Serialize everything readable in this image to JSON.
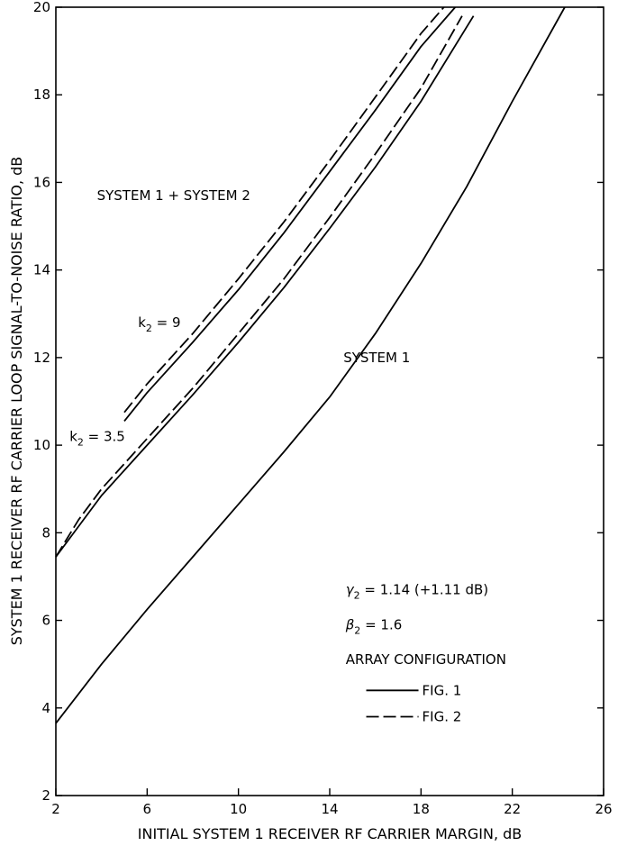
{
  "chart_data": {
    "type": "line",
    "title": "",
    "xlabel": "INITIAL SYSTEM 1 RECEIVER RF CARRIER MARGIN, dB",
    "ylabel": "SYSTEM 1 RECEIVER RF CARRIER LOOP SIGNAL-TO-NOISE RATIO, dB",
    "xlim": [
      2,
      26
    ],
    "ylim": [
      2,
      20
    ],
    "xticks": [
      2,
      6,
      10,
      14,
      18,
      22,
      26
    ],
    "yticks": [
      2,
      4,
      6,
      8,
      10,
      12,
      14,
      16,
      18,
      20
    ],
    "grid": false,
    "series": [
      {
        "style": "solid",
        "color": "#000000",
        "x": [
          2,
          4,
          6,
          8,
          10,
          12,
          14,
          16,
          18,
          20,
          22,
          24.3
        ],
        "y": [
          3.65,
          5.0,
          6.25,
          7.45,
          8.65,
          9.85,
          11.1,
          12.55,
          14.15,
          15.9,
          17.85,
          20.0
        ]
      },
      {
        "style": "solid",
        "color": "#000000",
        "x": [
          2,
          4,
          6,
          8,
          10,
          12,
          14,
          16,
          18,
          20.3
        ],
        "y": [
          7.45,
          8.85,
          10.0,
          11.15,
          12.35,
          13.6,
          14.95,
          16.35,
          17.85,
          19.8
        ]
      },
      {
        "style": "dashed",
        "color": "#000000",
        "x": [
          2,
          3,
          4,
          6,
          8,
          10,
          12,
          14,
          16,
          18,
          19.8
        ],
        "y": [
          7.45,
          8.3,
          9.0,
          10.15,
          11.3,
          12.55,
          13.8,
          15.2,
          16.65,
          18.15,
          19.8
        ]
      },
      {
        "style": "solid",
        "color": "#000000",
        "x": [
          5,
          6,
          8,
          10,
          12,
          14,
          16,
          18,
          19.5
        ],
        "y": [
          10.55,
          11.2,
          12.35,
          13.55,
          14.85,
          16.25,
          17.65,
          19.1,
          20.0
        ]
      },
      {
        "style": "dashed",
        "color": "#000000",
        "x": [
          5,
          6,
          8,
          10,
          12,
          14,
          16,
          18,
          19.0
        ],
        "y": [
          10.75,
          11.4,
          12.55,
          13.8,
          15.1,
          16.5,
          17.95,
          19.4,
          20.0
        ]
      }
    ],
    "annotations": [
      {
        "id": "sys12",
        "text": "SYSTEM 1 + SYSTEM 2",
        "x": 3.8,
        "y": 15.6
      },
      {
        "id": "k9",
        "text": "k",
        "sub": "2",
        "tail": " = 9",
        "x": 5.6,
        "y": 12.7
      },
      {
        "id": "k35",
        "text": "k",
        "sub": "2",
        "tail": " = 3.5",
        "x": 2.6,
        "y": 10.1
      },
      {
        "id": "sys1",
        "text": "SYSTEM 1",
        "x": 14.6,
        "y": 11.9
      },
      {
        "id": "gamma",
        "text": "γ",
        "sub": "2",
        "tail": " = 1.14 (+1.11 dB)",
        "x": 14.7,
        "y": 6.6
      },
      {
        "id": "beta",
        "text": "β",
        "sub": "2",
        "tail": " = 1.6",
        "x": 14.7,
        "y": 5.8
      },
      {
        "id": "arr",
        "text": "ARRAY CONFIGURATION",
        "x": 14.7,
        "y": 5.0
      }
    ],
    "legend": {
      "placement": "bottom-right",
      "items": [
        {
          "label": "FIG. 1",
          "style": "solid"
        },
        {
          "label": "FIG. 2",
          "style": "dashed"
        }
      ]
    }
  }
}
